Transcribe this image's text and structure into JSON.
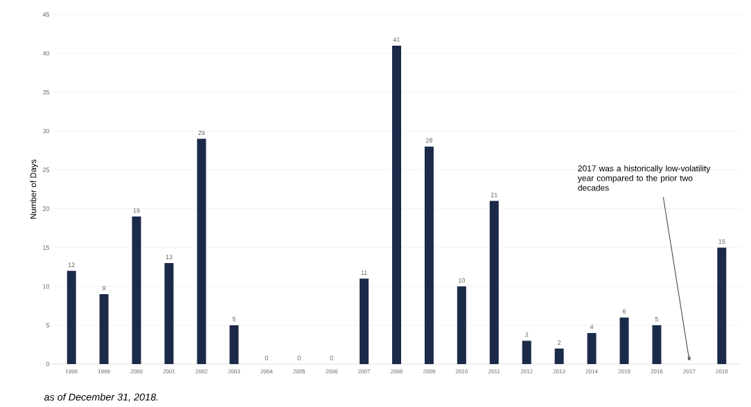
{
  "chart_data": {
    "type": "bar",
    "categories": [
      "1998",
      "1999",
      "2000",
      "2001",
      "2002",
      "2003",
      "2004",
      "2005",
      "2006",
      "2007",
      "2008",
      "2009",
      "2010",
      "2011",
      "2012",
      "2013",
      "2014",
      "2015",
      "2016",
      "2017",
      "2018"
    ],
    "values": [
      12,
      9,
      19,
      13,
      29,
      5,
      0,
      0,
      0,
      11,
      41,
      28,
      10,
      21,
      3,
      2,
      4,
      6,
      5,
      0,
      15
    ],
    "color": "#1c2a4a",
    "ylabel": "Number of Days",
    "ylim": [
      0,
      45
    ],
    "yticks": [
      0,
      5,
      10,
      15,
      20,
      25,
      30,
      35,
      40,
      45
    ],
    "grid": "y",
    "data_labels": true,
    "annotations": [
      {
        "text": "2017 was a historically low-volatility year compared to the prior two decades",
        "x": "2017",
        "y": 0
      },
      "as of December 31, 2018."
    ]
  }
}
